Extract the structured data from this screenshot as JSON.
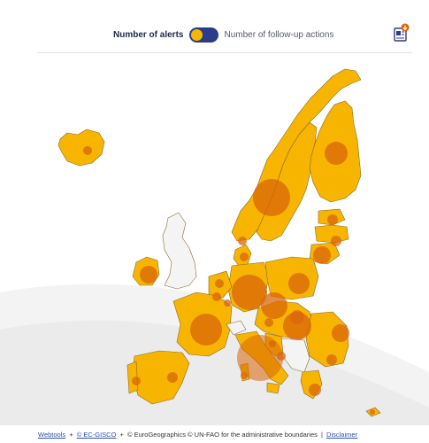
{
  "toggle": {
    "active_label": "Number of alerts",
    "inactive_label": "Number of follow-up actions",
    "selected": "Number of alerts"
  },
  "colors": {
    "country_fill": "#f7b500",
    "country_stroke": "#8a6a2a",
    "non_member_fill": "#f4f4f4",
    "bubble": "#d9650a",
    "toggle_track": "#2d3c8a",
    "toggle_knob": "#f5b800",
    "badge": "#d9650a"
  },
  "icons": {
    "export": "download-document-icon"
  },
  "footer": {
    "webtools": "Webtools",
    "gisco": "© EC-GISCO",
    "euro": "© EuroGeographics © UN-FAO for the administrative boundaries",
    "disclaimer": "Disclaimer",
    "plus": "+",
    "pipe": "|"
  }
}
